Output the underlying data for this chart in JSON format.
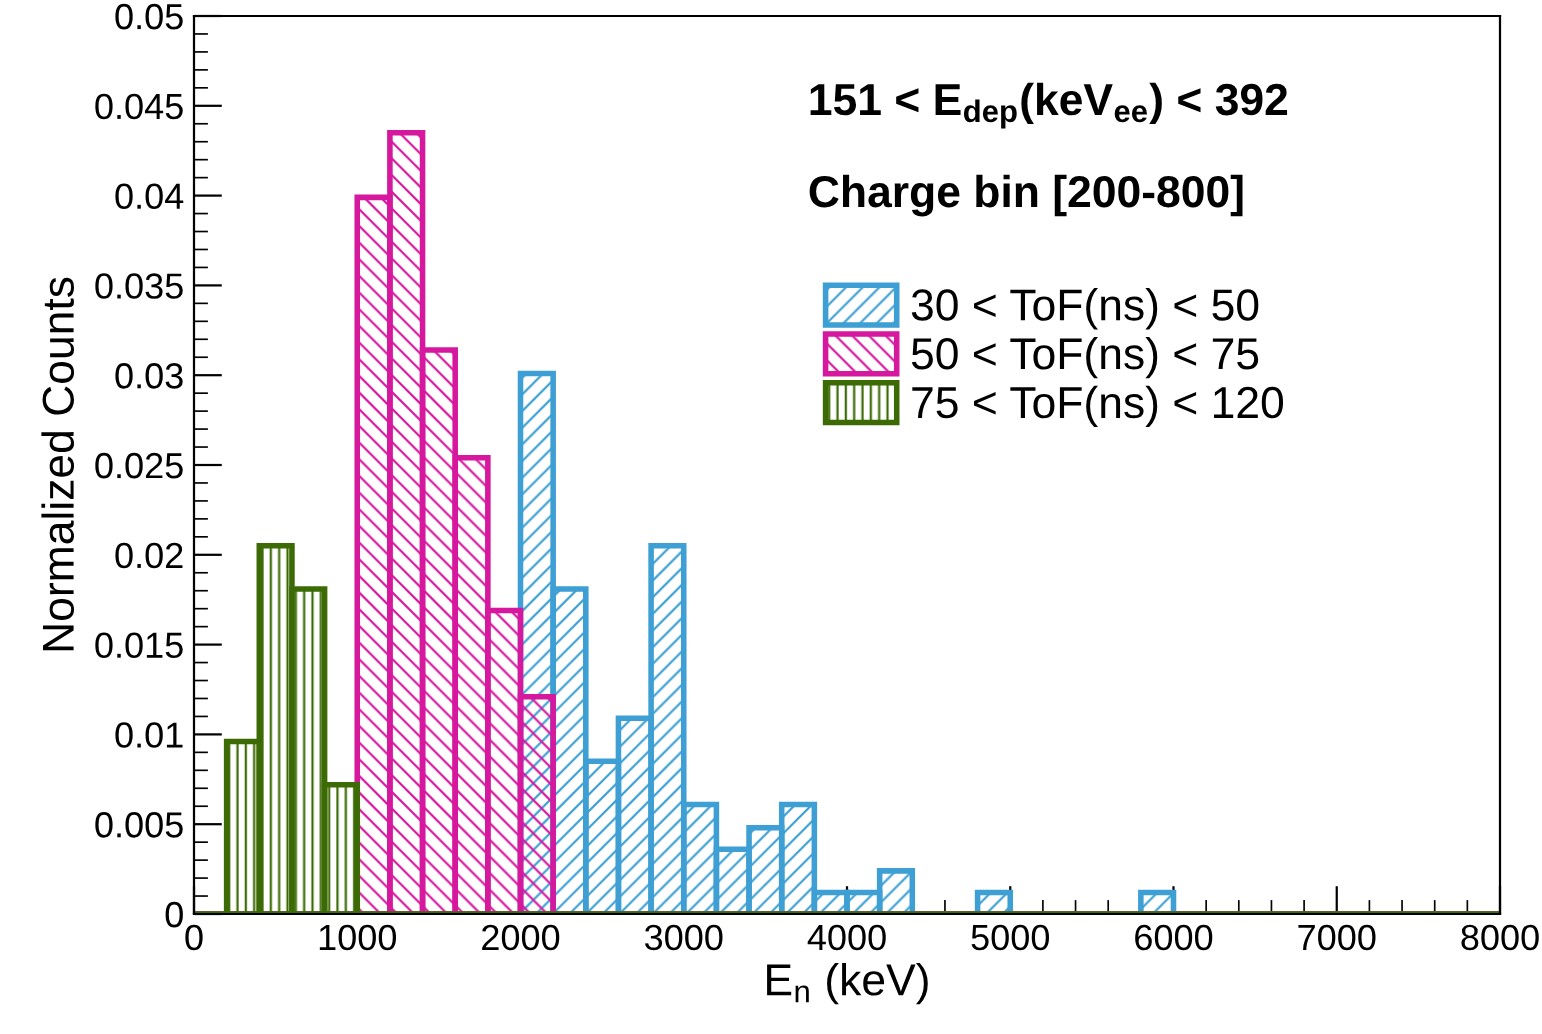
{
  "chart_data": {
    "type": "histogram",
    "xlabel": "E$_{n}$ (keV)",
    "ylabel": "Normalized Counts",
    "annotations": [
      "151 < E$_{dep}$(keV$_{ee}$) < 392",
      "Charge bin [200-800]"
    ],
    "bins": [
      0,
      200,
      400,
      600,
      800,
      1000,
      1200,
      1400,
      1600,
      1800,
      2000,
      2200,
      2400,
      2600,
      2800,
      3000,
      3200,
      3400,
      3600,
      3800,
      4000,
      4200,
      4400,
      4600,
      4800,
      5000,
      5200,
      5400,
      5600,
      5800,
      6000,
      6200,
      6400,
      6600,
      6800,
      7000,
      7200,
      7400,
      7600,
      7800,
      8000
    ],
    "series": [
      {
        "name": "30 < ToF(ns) < 50",
        "color": "#3d9fd3",
        "values": [
          0,
          0,
          0,
          0,
          0,
          0,
          0,
          0,
          0,
          0,
          0.0301,
          0.0181,
          0.0085,
          0.0109,
          0.0205,
          0.0061,
          0.0036,
          0.0048,
          0.0061,
          0.0012,
          0.0012,
          0.0024,
          0,
          0,
          0.0012,
          0,
          0,
          0,
          0,
          0.0012,
          0,
          0,
          0,
          0,
          0,
          0,
          0,
          0,
          0,
          0
        ]
      },
      {
        "name": "50 < ToF(ns) < 75",
        "color": "#d6189f",
        "values": [
          0,
          0,
          0,
          0,
          0,
          0.0399,
          0.0435,
          0.0314,
          0.0254,
          0.0169,
          0.0121,
          0,
          0,
          0,
          0,
          0,
          0,
          0,
          0,
          0,
          0,
          0,
          0,
          0,
          0,
          0,
          0,
          0,
          0,
          0,
          0,
          0,
          0,
          0,
          0,
          0,
          0,
          0,
          0,
          0
        ]
      },
      {
        "name": "75 < ToF(ns) < 120",
        "color": "#3c6b06",
        "values": [
          0,
          0.0096,
          0.0205,
          0.0181,
          0.0072,
          0,
          0,
          0,
          0,
          0,
          0,
          0,
          0,
          0,
          0,
          0,
          0,
          0,
          0,
          0,
          0,
          0,
          0,
          0,
          0,
          0,
          0,
          0,
          0,
          0,
          0,
          0,
          0,
          0,
          0,
          0,
          0,
          0,
          0,
          0
        ]
      }
    ],
    "xlim": [
      0,
      8000
    ],
    "xticks": [
      0,
      1000,
      2000,
      3000,
      4000,
      5000,
      6000,
      7000,
      8000
    ],
    "ylim": [
      0,
      0.05
    ],
    "yticks": [
      0,
      0.005,
      0.01,
      0.015,
      0.02,
      0.025,
      0.03,
      0.035,
      0.04,
      0.045,
      0.05
    ],
    "legend": "right",
    "grid": false
  }
}
